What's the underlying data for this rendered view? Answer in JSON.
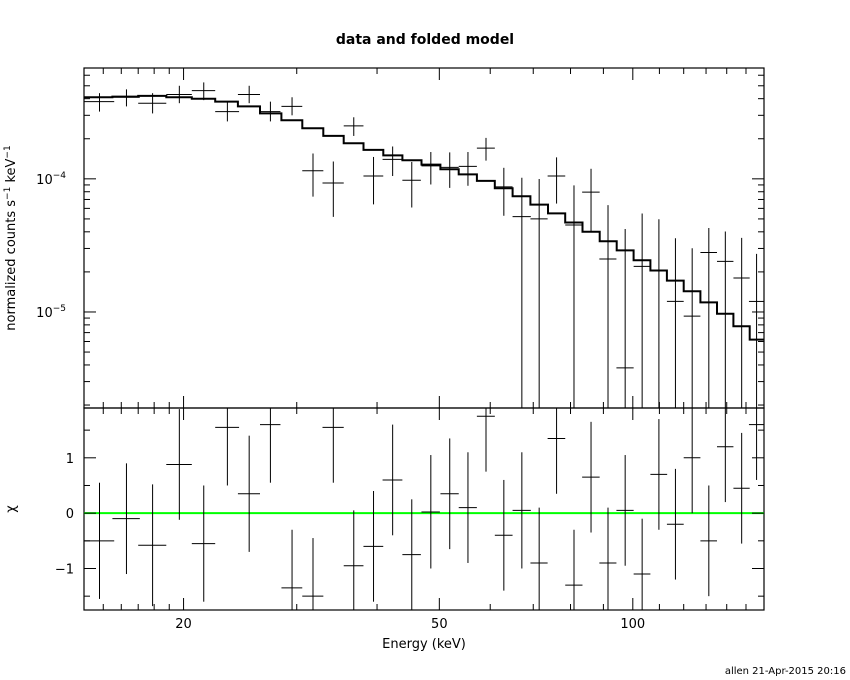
{
  "title": "data and folded model",
  "footer": "allen 21-Apr-2015 20:16",
  "colors": {
    "axes": "#000000",
    "data": "#000000",
    "model": "#000000",
    "zero_line": "#00ff00"
  },
  "chart_data": [
    {
      "panel": "top",
      "type": "step-line-with-errorbars",
      "xlabel": "Energy (keV)",
      "ylabel_main": "normalized counts s",
      "ylabel_sup1": "−1",
      "ylabel_mid": " keV",
      "ylabel_sup2": "−1",
      "x_scale": "log",
      "y_scale": "log",
      "xlim": [
        14,
        160
      ],
      "ylim": [
        1.9e-06,
        0.00068
      ],
      "y_ticks": [
        {
          "value": 0.0001,
          "base": "10",
          "exp": "−4"
        },
        {
          "value": 1e-05,
          "base": "10",
          "exp": "−5"
        }
      ],
      "model": {
        "edges": [
          14,
          15.5,
          17,
          18.8,
          20.6,
          22.4,
          24.3,
          26.3,
          28.4,
          30.6,
          33,
          35.5,
          38.1,
          40.9,
          43.8,
          46.9,
          50.2,
          53.6,
          57.2,
          61,
          65,
          69.3,
          73.8,
          78.5,
          83.5,
          88.8,
          94.4,
          100.3,
          106.5,
          113,
          120,
          127.4,
          135.2,
          143.4,
          152,
          160
        ],
        "values": [
          0.00041,
          0.000415,
          0.00042,
          0.00041,
          0.0004,
          0.00038,
          0.00035,
          0.00031,
          0.000275,
          0.00024,
          0.00021,
          0.000185,
          0.000165,
          0.00015,
          0.000138,
          0.000128,
          0.000118,
          0.000108,
          9.65e-05,
          8.5e-05,
          7.4e-05,
          6.4e-05,
          5.5e-05,
          4.7e-05,
          4e-05,
          3.4e-05,
          2.9e-05,
          2.45e-05,
          2.05e-05,
          1.72e-05,
          1.43e-05,
          1.18e-05,
          9.7e-06,
          7.8e-06,
          6.2e-06
        ]
      },
      "data_points": [
        {
          "x": 14.8,
          "xerr": [
            0.8,
            0.8
          ],
          "y": 0.00038,
          "ylo": 0.00032,
          "yhi": 0.00044
        },
        {
          "x": 16.3,
          "xerr": [
            0.8,
            0.8
          ],
          "y": 0.00041,
          "ylo": 0.00035,
          "yhi": 0.00047
        },
        {
          "x": 17.9,
          "xerr": [
            0.9,
            0.9
          ],
          "y": 0.00037,
          "ylo": 0.00031,
          "yhi": 0.00044
        },
        {
          "x": 19.7,
          "xerr": [
            0.9,
            0.9
          ],
          "y": 0.00043,
          "ylo": 0.00037,
          "yhi": 0.0005
        },
        {
          "x": 21.5,
          "xerr": [
            0.9,
            0.9
          ],
          "y": 0.00046,
          "ylo": 0.00039,
          "yhi": 0.00053
        },
        {
          "x": 23.4,
          "xerr": [
            1.0,
            1.0
          ],
          "y": 0.00032,
          "ylo": 0.00027,
          "yhi": 0.00038
        },
        {
          "x": 25.3,
          "xerr": [
            1.0,
            1.0
          ],
          "y": 0.00043,
          "ylo": 0.00037,
          "yhi": 0.0005
        },
        {
          "x": 27.3,
          "xerr": [
            1.0,
            1.0
          ],
          "y": 0.00032,
          "ylo": 0.00027,
          "yhi": 0.00038
        },
        {
          "x": 29.5,
          "xerr": [
            1.1,
            1.1
          ],
          "y": 0.00035,
          "ylo": 0.0003,
          "yhi": 0.00041
        },
        {
          "x": 31.8,
          "xerr": [
            1.2,
            1.2
          ],
          "y": 0.000115,
          "ylo": 7.35e-05,
          "yhi": 0.000155
        },
        {
          "x": 34.2,
          "xerr": [
            1.3,
            1.3
          ],
          "y": 9.3e-05,
          "ylo": 5.18e-05,
          "yhi": 0.000135
        },
        {
          "x": 36.8,
          "xerr": [
            1.3,
            1.3
          ],
          "y": 0.00025,
          "ylo": 0.00021,
          "yhi": 0.00029
        },
        {
          "x": 39.5,
          "xerr": [
            1.4,
            1.4
          ],
          "y": 0.000105,
          "ylo": 6.43e-05,
          "yhi": 0.000146
        },
        {
          "x": 42.3,
          "xerr": [
            1.5,
            1.5
          ],
          "y": 0.00014,
          "ylo": 0.000105,
          "yhi": 0.000175
        },
        {
          "x": 45.3,
          "xerr": [
            1.5,
            1.5
          ],
          "y": 9.75e-05,
          "ylo": 6.09e-05,
          "yhi": 0.000134
        },
        {
          "x": 48.5,
          "xerr": [
            1.6,
            1.6
          ],
          "y": 0.000125,
          "ylo": 9.07e-05,
          "yhi": 0.000159
        },
        {
          "x": 51.9,
          "xerr": [
            1.7,
            1.7
          ],
          "y": 0.000122,
          "ylo": 8.55e-05,
          "yhi": 0.000158
        },
        {
          "x": 55.4,
          "xerr": [
            1.8,
            1.8
          ],
          "y": 0.000124,
          "ylo": 8.87e-05,
          "yhi": 0.000159
        },
        {
          "x": 59.1,
          "xerr": [
            1.9,
            1.9
          ],
          "y": 0.00017,
          "ylo": 0.000137,
          "yhi": 0.000203
        },
        {
          "x": 63,
          "xerr": [
            2.0,
            2.0
          ],
          "y": 8.7e-05,
          "ylo": 5.28e-05,
          "yhi": 0.000121
        },
        {
          "x": 67.2,
          "xerr": [
            2.2,
            2.2
          ],
          "y": 5.2e-05,
          "ylo": 1.9e-06,
          "yhi": 0.000102
        },
        {
          "x": 71.5,
          "xerr": [
            2.2,
            2.2
          ],
          "y": 5e-05,
          "ylo": 1.9e-06,
          "yhi": 9.97e-05
        },
        {
          "x": 76.1,
          "xerr": [
            2.4,
            2.4
          ],
          "y": 0.000105,
          "ylo": 6.52e-05,
          "yhi": 0.000145
        },
        {
          "x": 81,
          "xerr": [
            2.5,
            2.5
          ],
          "y": 4.5e-05,
          "ylo": 1.9e-06,
          "yhi": 8.93e-05
        },
        {
          "x": 86.1,
          "xerr": [
            2.7,
            2.7
          ],
          "y": 7.95e-05,
          "ylo": 4.03e-05,
          "yhi": 0.000119
        },
        {
          "x": 91.5,
          "xerr": [
            2.8,
            2.8
          ],
          "y": 2.5e-05,
          "ylo": 1.9e-06,
          "yhi": 6.34e-05
        },
        {
          "x": 97.3,
          "xerr": [
            3.0,
            3.0
          ],
          "y": 3.8e-06,
          "ylo": 1.9e-06,
          "yhi": 4.2e-05
        },
        {
          "x": 103.4,
          "xerr": [
            3.1,
            3.1
          ],
          "y": 2.2e-05,
          "ylo": 1.9e-06,
          "yhi": 5.49e-05
        },
        {
          "x": 109.8,
          "xerr": [
            3.3,
            3.3
          ],
          "y": 2.05e-05,
          "ylo": 1.9e-06,
          "yhi": 4.97e-05
        },
        {
          "x": 116.5,
          "xerr": [
            3.5,
            3.5
          ],
          "y": 1.2e-05,
          "ylo": 1.9e-06,
          "yhi": 3.58e-05
        },
        {
          "x": 123.7,
          "xerr": [
            3.7,
            3.7
          ],
          "y": 9.3e-06,
          "ylo": 1.9e-06,
          "yhi": 3.01e-05
        },
        {
          "x": 131.3,
          "xerr": [
            3.9,
            3.9
          ],
          "y": 2.8e-05,
          "ylo": 1.9e-06,
          "yhi": 4.27e-05
        },
        {
          "x": 139.3,
          "xerr": [
            4.1,
            4.1
          ],
          "y": 2.4e-05,
          "ylo": 1.9e-06,
          "yhi": 4.02e-05
        },
        {
          "x": 147.7,
          "xerr": [
            4.3,
            4.3
          ],
          "y": 1.8e-05,
          "ylo": 1.9e-06,
          "yhi": 3.6e-05
        },
        {
          "x": 155.8,
          "xerr": [
            4.2,
            4.2
          ],
          "y": 1.2e-05,
          "ylo": 1.9e-06,
          "yhi": 2.73e-05
        }
      ]
    },
    {
      "panel": "bottom",
      "type": "residuals",
      "xlabel": "Energy (keV)",
      "ylabel": "χ",
      "x_scale": "log",
      "xlim": [
        14,
        160
      ],
      "ylim": [
        -1.75,
        1.9
      ],
      "y_ticks": [
        1,
        0,
        -1
      ],
      "y_tick_labels": [
        "1",
        "0",
        "−1"
      ],
      "x_ticks": [
        20,
        50,
        100
      ],
      "x_tick_labels": [
        "20",
        "50",
        "100"
      ],
      "zero_line": 0,
      "data_points": [
        {
          "x": 14.8,
          "xerr": [
            0.8,
            0.8
          ],
          "y": -0.5,
          "ylo": -1.55,
          "yhi": 0.55
        },
        {
          "x": 16.3,
          "xerr": [
            0.8,
            0.8
          ],
          "y": -0.1,
          "ylo": -1.1,
          "yhi": 0.9
        },
        {
          "x": 17.9,
          "xerr": [
            0.9,
            0.9
          ],
          "y": -0.58,
          "ylo": -1.68,
          "yhi": 0.52
        },
        {
          "x": 19.7,
          "xerr": [
            0.9,
            0.9
          ],
          "y": 0.88,
          "ylo": -0.12,
          "yhi": 1.88
        },
        {
          "x": 21.5,
          "xerr": [
            0.9,
            0.9
          ],
          "y": -0.55,
          "ylo": -1.6,
          "yhi": 0.5
        },
        {
          "x": 23.4,
          "xerr": [
            1.0,
            1.0
          ],
          "y": 1.55,
          "ylo": 0.5,
          "yhi": 1.9
        },
        {
          "x": 25.3,
          "xerr": [
            1.0,
            1.0
          ],
          "y": 0.35,
          "ylo": -0.7,
          "yhi": 1.4
        },
        {
          "x": 27.3,
          "xerr": [
            1.0,
            1.0
          ],
          "y": 1.6,
          "ylo": 0.55,
          "yhi": 1.9
        },
        {
          "x": 29.5,
          "xerr": [
            1.1,
            1.1
          ],
          "y": -1.35,
          "ylo": -1.75,
          "yhi": -0.3
        },
        {
          "x": 31.8,
          "xerr": [
            1.2,
            1.2
          ],
          "y": -1.5,
          "ylo": -1.75,
          "yhi": -0.45
        },
        {
          "x": 34.2,
          "xerr": [
            1.3,
            1.3
          ],
          "y": 1.55,
          "ylo": 0.55,
          "yhi": 1.9
        },
        {
          "x": 36.8,
          "xerr": [
            1.3,
            1.3
          ],
          "y": -0.95,
          "ylo": -1.75,
          "yhi": 0.05
        },
        {
          "x": 39.5,
          "xerr": [
            1.4,
            1.4
          ],
          "y": -0.6,
          "ylo": -1.6,
          "yhi": 0.4
        },
        {
          "x": 42.3,
          "xerr": [
            1.5,
            1.5
          ],
          "y": 0.6,
          "ylo": -0.4,
          "yhi": 1.6
        },
        {
          "x": 45.3,
          "xerr": [
            1.5,
            1.5
          ],
          "y": -0.75,
          "ylo": -1.75,
          "yhi": 0.25
        },
        {
          "x": 48.5,
          "xerr": [
            1.6,
            1.6
          ],
          "y": 0.02,
          "ylo": -1.0,
          "yhi": 1.05
        },
        {
          "x": 51.9,
          "xerr": [
            1.7,
            1.7
          ],
          "y": 0.35,
          "ylo": -0.65,
          "yhi": 1.35
        },
        {
          "x": 55.4,
          "xerr": [
            1.8,
            1.8
          ],
          "y": 0.1,
          "ylo": -0.9,
          "yhi": 1.1
        },
        {
          "x": 59.1,
          "xerr": [
            1.9,
            1.9
          ],
          "y": 1.75,
          "ylo": 0.75,
          "yhi": 1.9
        },
        {
          "x": 63,
          "xerr": [
            2.0,
            2.0
          ],
          "y": -0.4,
          "ylo": -1.4,
          "yhi": 0.6
        },
        {
          "x": 67.2,
          "xerr": [
            2.2,
            2.2
          ],
          "y": 0.05,
          "ylo": -1.0,
          "yhi": 1.1
        },
        {
          "x": 71.5,
          "xerr": [
            2.2,
            2.2
          ],
          "y": -0.9,
          "ylo": -1.75,
          "yhi": 0.1
        },
        {
          "x": 76.1,
          "xerr": [
            2.4,
            2.4
          ],
          "y": 1.35,
          "ylo": 0.35,
          "yhi": 1.9
        },
        {
          "x": 81,
          "xerr": [
            2.5,
            2.5
          ],
          "y": -1.3,
          "ylo": -1.75,
          "yhi": -0.3
        },
        {
          "x": 86.1,
          "xerr": [
            2.7,
            2.7
          ],
          "y": 0.65,
          "ylo": -0.35,
          "yhi": 1.65
        },
        {
          "x": 91.5,
          "xerr": [
            2.8,
            2.8
          ],
          "y": -0.9,
          "ylo": -1.75,
          "yhi": 0.1
        },
        {
          "x": 97.3,
          "xerr": [
            3.0,
            3.0
          ],
          "y": 0.05,
          "ylo": -0.95,
          "yhi": 1.05
        },
        {
          "x": 103.4,
          "xerr": [
            3.1,
            3.1
          ],
          "y": -1.1,
          "ylo": -1.75,
          "yhi": -0.1
        },
        {
          "x": 109.8,
          "xerr": [
            3.3,
            3.3
          ],
          "y": 0.7,
          "ylo": -0.3,
          "yhi": 1.7
        },
        {
          "x": 116.5,
          "xerr": [
            3.5,
            3.5
          ],
          "y": -0.2,
          "ylo": -1.2,
          "yhi": 0.8
        },
        {
          "x": 123.7,
          "xerr": [
            3.7,
            3.7
          ],
          "y": 1.0,
          "ylo": 0.0,
          "yhi": 1.9
        },
        {
          "x": 131.3,
          "xerr": [
            3.9,
            3.9
          ],
          "y": -0.5,
          "ylo": -1.5,
          "yhi": 0.5
        },
        {
          "x": 139.3,
          "xerr": [
            4.1,
            4.1
          ],
          "y": 1.2,
          "ylo": 0.2,
          "yhi": 1.9
        },
        {
          "x": 147.7,
          "xerr": [
            4.3,
            4.3
          ],
          "y": 0.45,
          "ylo": -0.55,
          "yhi": 1.45
        },
        {
          "x": 155.8,
          "xerr": [
            4.2,
            4.2
          ],
          "y": 1.6,
          "ylo": 0.6,
          "yhi": 1.9
        }
      ]
    }
  ]
}
